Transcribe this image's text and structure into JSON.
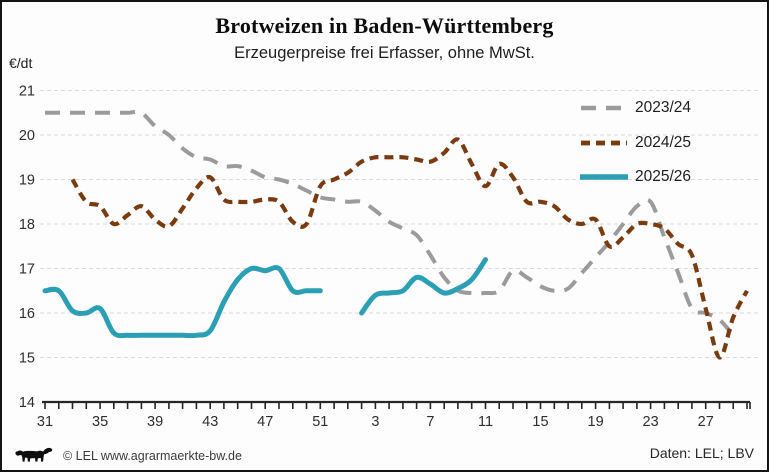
{
  "header": {
    "title": "Brotweizen in Baden-Württemberg",
    "subtitle": "Erzeugerpreise frei Erfasser, ohne MwSt.",
    "unit_label": "€/dt"
  },
  "footer": {
    "copyright": "© LEL www.agrarmaerkte-bw.de",
    "source": "Daten: LEL; LBV",
    "logo_icon": "bw-lion-logo"
  },
  "chart_data": {
    "type": "line",
    "title": "Brotweizen in Baden-Württemberg",
    "subtitle": "Erzeugerpreise frei Erfasser, ohne MwSt.",
    "ylabel": "€/dt",
    "ylim": [
      14,
      21
    ],
    "y_tick_step": 1,
    "grid": "horizontal-dashed",
    "grid_color": "#d9d9d9",
    "axis_color": "#262626",
    "text_color": "#2e2e2e",
    "legend_position": "top-right",
    "x_weeks": [
      31,
      32,
      33,
      34,
      35,
      36,
      37,
      38,
      39,
      40,
      41,
      42,
      43,
      44,
      45,
      46,
      47,
      48,
      49,
      50,
      51,
      52,
      1,
      2,
      3,
      4,
      5,
      6,
      7,
      8,
      9,
      10,
      11,
      12,
      13,
      14,
      15,
      16,
      17,
      18,
      19,
      20,
      21,
      22,
      23,
      24,
      25,
      26,
      27,
      28,
      29,
      30
    ],
    "x_tick_labels": [
      "31",
      "35",
      "39",
      "43",
      "47",
      "51",
      "3",
      "7",
      "11",
      "15",
      "19",
      "23",
      "27"
    ],
    "x_tick_indices": [
      0,
      4,
      8,
      12,
      16,
      20,
      24,
      28,
      32,
      36,
      40,
      44,
      48
    ],
    "series": [
      {
        "name": "2023/24",
        "color": "#9b9b9b",
        "dash": "15 10",
        "width": 4,
        "values": [
          20.5,
          20.5,
          20.5,
          20.5,
          20.5,
          20.5,
          20.5,
          20.5,
          20.2,
          20.0,
          19.7,
          19.5,
          19.45,
          19.3,
          19.3,
          19.2,
          19.05,
          19.0,
          18.9,
          18.75,
          18.6,
          18.55,
          18.5,
          18.5,
          18.3,
          18.05,
          17.9,
          17.75,
          17.3,
          16.8,
          16.5,
          16.45,
          16.45,
          16.5,
          16.95,
          16.8,
          16.6,
          16.5,
          16.55,
          16.9,
          17.25,
          17.6,
          18.0,
          18.4,
          18.5,
          17.7,
          16.9,
          16.1,
          16.0,
          15.85,
          15.5,
          null
        ]
      },
      {
        "name": "2024/25",
        "color": "#7a3b10",
        "dash": "9 6",
        "width": 4.2,
        "values": [
          null,
          null,
          19.0,
          18.5,
          18.4,
          18.0,
          18.2,
          18.4,
          18.1,
          17.95,
          18.35,
          18.8,
          19.05,
          18.55,
          18.5,
          18.5,
          18.55,
          18.5,
          18.05,
          18.0,
          18.85,
          19.0,
          19.15,
          19.4,
          19.5,
          19.5,
          19.5,
          19.45,
          19.4,
          19.6,
          19.9,
          19.35,
          18.85,
          19.35,
          19.05,
          18.5,
          18.5,
          18.4,
          18.1,
          18.0,
          18.1,
          17.5,
          17.7,
          18.0,
          18.0,
          17.9,
          17.55,
          17.3,
          16.1,
          15.0,
          15.9,
          16.5
        ]
      },
      {
        "name": "2025/26",
        "color": "#2d9fb4",
        "dash": null,
        "width": 5,
        "values": [
          16.5,
          16.5,
          16.05,
          16.0,
          16.1,
          15.55,
          15.5,
          15.5,
          15.5,
          15.5,
          15.5,
          15.5,
          15.6,
          16.25,
          16.75,
          17.0,
          16.95,
          17.0,
          16.5,
          16.5,
          16.5,
          null,
          null,
          16.0,
          16.4,
          16.45,
          16.5,
          16.8,
          16.65,
          16.45,
          16.55,
          16.75,
          17.2,
          null,
          null,
          null,
          null,
          null,
          null,
          null,
          null,
          null,
          null,
          null,
          null,
          null,
          null,
          null,
          null,
          null,
          null,
          null
        ]
      }
    ]
  }
}
